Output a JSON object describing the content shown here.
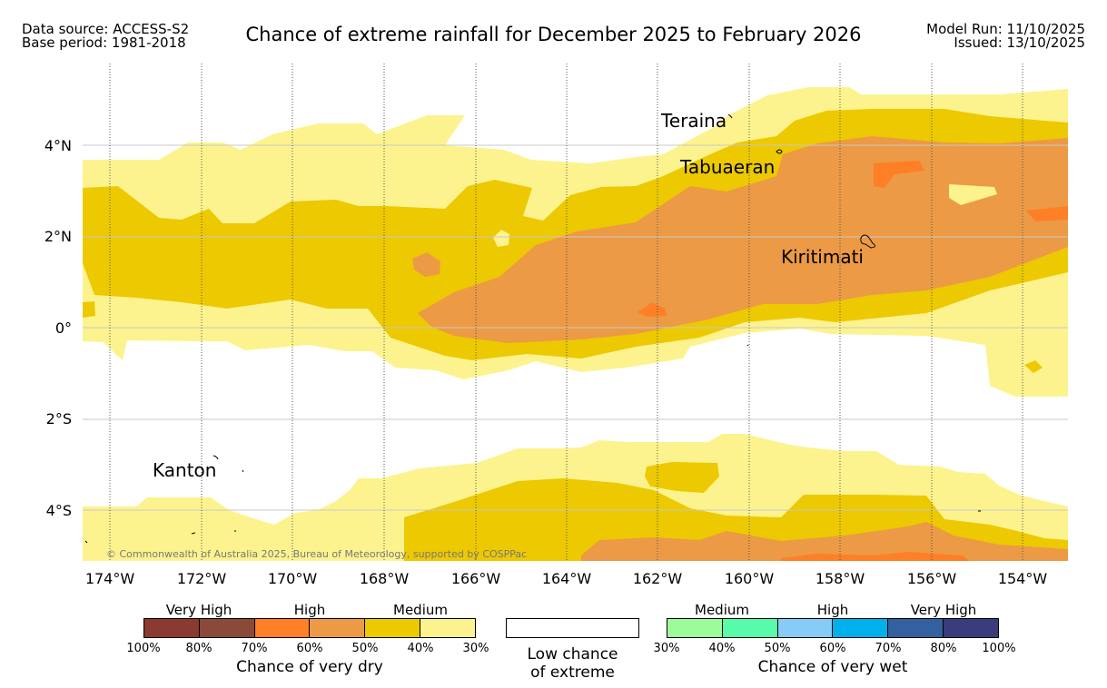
{
  "header": {
    "data_source": "Data source: ACCESS-S2",
    "base_period": "Base period: 1981-2018",
    "title": "Chance of extreme rainfall for December 2025 to February 2026",
    "model_run": "Model Run: 11/10/2025",
    "issued": "Issued: 13/10/2025"
  },
  "map": {
    "lat_labels": [
      "4°N",
      "2°N",
      "0°",
      "2°S",
      "4°S"
    ],
    "lon_labels": [
      "174°W",
      "172°W",
      "170°W",
      "168°W",
      "166°W",
      "164°W",
      "162°W",
      "160°W",
      "158°W",
      "156°W",
      "154°W"
    ],
    "places": {
      "teraina": "Teraina",
      "tabuaeran": "Tabuaeran",
      "kiritimati": "Kiritimati",
      "kanton": "Kanton"
    },
    "copyright": "© Commonwealth of Australia 2025, Bureau of Meteorology, supported by COSPPac",
    "colors": {
      "dry_30_40": "#fdf38e",
      "dry_40_50": "#ecc900",
      "dry_50_60": "#ec9a45",
      "dry_60_70": "#fe7f26",
      "grid": "#c8c8c8",
      "coast": "#000000"
    }
  },
  "legend": {
    "dry": {
      "groups": [
        "Very High",
        "High",
        "Medium"
      ],
      "colors": [
        "#8b3a2f",
        "#8a4a37",
        "#fe7f26",
        "#ec9a45",
        "#ecc900",
        "#fdf38e"
      ],
      "ticks": [
        "100%",
        "80%",
        "70%",
        "60%",
        "50%",
        "40%",
        "30%"
      ],
      "caption": "Chance of very dry"
    },
    "low": {
      "line1": "Low chance",
      "line2": "of extreme",
      "color": "#ffffff"
    },
    "wet": {
      "groups": [
        "Medium",
        "High",
        "Very High"
      ],
      "colors": [
        "#9dfc9a",
        "#57fba9",
        "#87ccf7",
        "#00b0ed",
        "#33609e",
        "#3b3c7c"
      ],
      "ticks": [
        "30%",
        "40%",
        "50%",
        "60%",
        "70%",
        "80%",
        "100%"
      ],
      "caption": "Chance of very wet"
    }
  }
}
